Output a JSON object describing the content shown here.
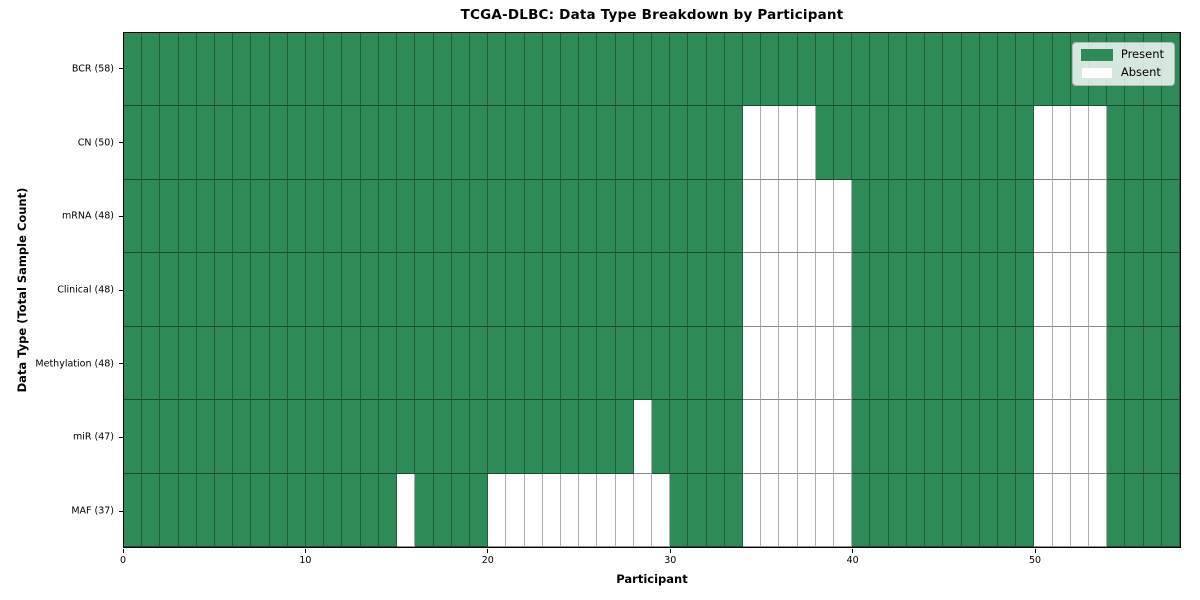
{
  "chart_data": {
    "type": "heatmap",
    "title": "TCGA-DLBC: Data Type Breakdown by Participant",
    "xlabel": "Participant",
    "ylabel": "Data Type (Total Sample Count)",
    "n_participants": 58,
    "x_range": [
      0,
      58
    ],
    "x_ticks": [
      0,
      10,
      20,
      30,
      40,
      50
    ],
    "grid": true,
    "legend_position": "upper right",
    "legend": [
      {
        "label": "Present",
        "color": "#2E8B57"
      },
      {
        "label": "Absent",
        "color": "#FFFFFF"
      }
    ],
    "colors": {
      "present": "#2E8B57",
      "absent": "#FFFFFF",
      "cell_grid_vertical": "rgba(0,0,0,0.32)",
      "cell_grid_horizontal": "rgba(0,0,0,0.45)",
      "axis_spine": "#000000",
      "figure_background": "#FFFFFF"
    },
    "rows": [
      {
        "label": "BCR (58)",
        "data_type": "BCR",
        "total_samples": 58,
        "absent_participants": []
      },
      {
        "label": "CN (50)",
        "data_type": "CN",
        "total_samples": 50,
        "absent_participants": [
          34,
          35,
          36,
          37,
          50,
          51,
          52,
          53
        ]
      },
      {
        "label": "mRNA (48)",
        "data_type": "mRNA",
        "total_samples": 48,
        "absent_participants": [
          34,
          35,
          36,
          37,
          38,
          39,
          50,
          51,
          52,
          53
        ]
      },
      {
        "label": "Clinical (48)",
        "data_type": "Clinical",
        "total_samples": 48,
        "absent_participants": [
          34,
          35,
          36,
          37,
          38,
          39,
          50,
          51,
          52,
          53
        ]
      },
      {
        "label": "Methylation (48)",
        "data_type": "Methylation",
        "total_samples": 48,
        "absent_participants": [
          34,
          35,
          36,
          37,
          38,
          39,
          50,
          51,
          52,
          53
        ]
      },
      {
        "label": "miR (47)",
        "data_type": "miR",
        "total_samples": 47,
        "absent_participants": [
          28,
          34,
          35,
          36,
          37,
          38,
          39,
          50,
          51,
          52,
          53
        ]
      },
      {
        "label": "MAF (37)",
        "data_type": "MAF",
        "total_samples": 37,
        "absent_participants": [
          15,
          20,
          21,
          22,
          23,
          24,
          25,
          26,
          27,
          28,
          29,
          34,
          35,
          36,
          37,
          38,
          39,
          50,
          51,
          52,
          53
        ]
      }
    ]
  }
}
